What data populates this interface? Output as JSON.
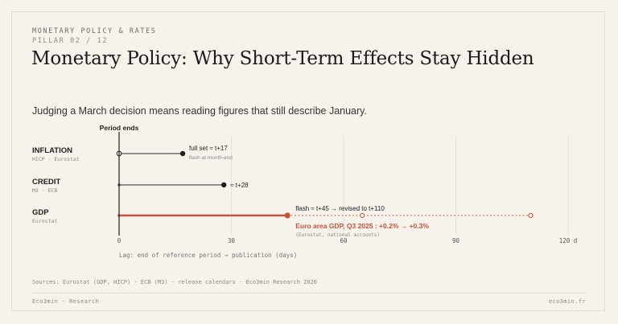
{
  "header": {
    "kicker": "MONETARY POLICY & RATES",
    "pillar": "PILLAR 02 / 12",
    "title": "Monetary Policy: Why Short-Term Effects Stay Hidden",
    "subtitle": "Judging a March decision means reading figures that still describe January."
  },
  "chart_data": {
    "type": "timeline",
    "period_label": "Period ends",
    "xlabel": "Lag: end of reference period → publication (days)",
    "xlim": [
      0,
      120
    ],
    "ticks": [
      "0",
      "30",
      "60",
      "90",
      "120 d"
    ],
    "tick_values": [
      0,
      30,
      60,
      90,
      120
    ],
    "grid": true,
    "colors": {
      "ink": "#1f1f1f",
      "accent": "#c4553a",
      "grid": "#e6e0d6"
    },
    "rows": [
      {
        "name": "INFLATION",
        "source": "HICP · Eurostat",
        "end": 17,
        "label": "full set ≈ t+17",
        "note": "flash at month-end",
        "accent": false
      },
      {
        "name": "CREDIT",
        "source": "M3 · ECB",
        "end": 28,
        "label": "≈ t+28",
        "note": "",
        "accent": false
      },
      {
        "name": "GDP",
        "source": "Eurostat",
        "end": 45,
        "revision": 110,
        "midpoint": 65,
        "label": "flash ≈ t+45 → revised to t+110",
        "callout": "Euro area GDP, Q3 2025 : +0.2% → +0.3%",
        "callout_note": "(Eurostat, national accounts)",
        "accent": true
      }
    ]
  },
  "footer": {
    "sources": "Sources: Eurostat (GDP, HICP) · ECB (M3) · release calendars · Eco3min Research 2026",
    "brand": "Eco3min · Research",
    "site": "eco3min.fr"
  }
}
